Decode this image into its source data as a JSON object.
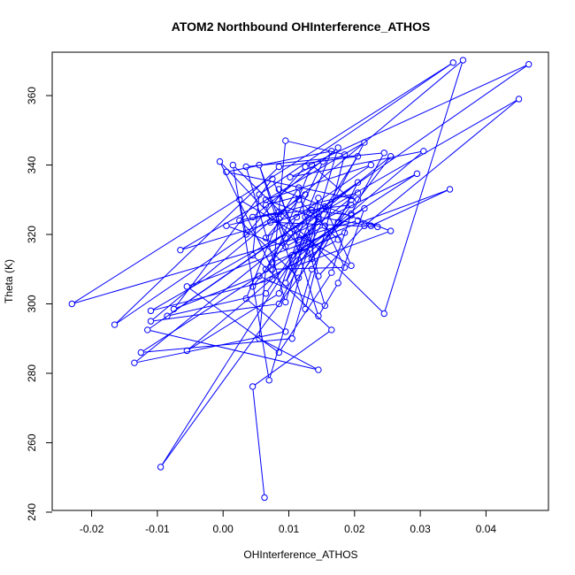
{
  "chart_data": {
    "type": "line",
    "title": "ATOM2 Northbound OHInterference_ATHOS",
    "xlabel": "OHInterference_ATHOS",
    "ylabel": "Theta (K)",
    "xlim": [
      -0.026,
      0.0495
    ],
    "ylim": [
      240.5,
      372.5
    ],
    "x_ticks": [
      -0.02,
      -0.01,
      0.0,
      0.01,
      0.02,
      0.03,
      0.04
    ],
    "x_tick_labels": [
      "-0.02",
      "-0.01",
      "0.00",
      "0.01",
      "0.02",
      "0.03",
      "0.04"
    ],
    "y_ticks": [
      240,
      260,
      280,
      300,
      320,
      340,
      360
    ],
    "y_tick_labels": [
      "240",
      "260",
      "280",
      "300",
      "320",
      "340",
      "360"
    ],
    "grid": false,
    "legend": "none",
    "series": [
      {
        "color": "#0000ff",
        "marker": "open-circle",
        "points": [
          [
            0.0063,
            244.2
          ],
          [
            0.0045,
            276.2
          ],
          [
            0.0165,
            292.5
          ],
          [
            0.0045,
            314.0
          ],
          [
            0.0055,
            331.5
          ],
          [
            0.035,
            369.5
          ],
          [
            -0.023,
            300.0
          ],
          [
            0.0205,
            324.0
          ],
          [
            0.0235,
            322.2
          ],
          [
            0.0072,
            323.5
          ],
          [
            0.0065,
            328.5
          ],
          [
            0.0125,
            331.5
          ],
          [
            -0.0165,
            294.0
          ],
          [
            0.0085,
            339.5
          ],
          [
            0.0205,
            342.5
          ],
          [
            -0.0095,
            253.0
          ],
          [
            0.0195,
            328.5
          ],
          [
            0.0045,
            325.0
          ],
          [
            0.0175,
            345.0
          ],
          [
            0.007,
            278.0
          ],
          [
            0.0015,
            340.0
          ],
          [
            0.0245,
            297.2
          ],
          [
            0.0365,
            370.2
          ],
          [
            -0.011,
            295.0
          ],
          [
            0.0085,
            300.0
          ],
          [
            0.0215,
            346.5
          ],
          [
            -0.0065,
            315.5
          ],
          [
            0.0155,
            328.0
          ],
          [
            0.0195,
            311.0
          ],
          [
            0.0025,
            330.0
          ],
          [
            0.0035,
            320.0
          ],
          [
            0.0125,
            339.5
          ],
          [
            0.0465,
            369.0
          ],
          [
            -0.0115,
            292.5
          ],
          [
            0.0145,
            281.0
          ],
          [
            0.0055,
            290.0
          ],
          [
            0.0065,
            310.0
          ],
          [
            0.0112,
            325.0
          ],
          [
            0.0152,
            341.0
          ],
          [
            0.0102,
            336.5
          ],
          [
            0.0305,
            344.0
          ],
          [
            -0.0055,
            286.5
          ],
          [
            0.0085,
            303.0
          ],
          [
            0.0125,
            325.0
          ],
          [
            0.0165,
            344.0
          ],
          [
            0.0005,
            338.0
          ],
          [
            0.0205,
            330.0
          ],
          [
            0.0255,
            342.5
          ],
          [
            -0.0135,
            283.0
          ],
          [
            0.0095,
            292.0
          ],
          [
            0.0035,
            301.5
          ],
          [
            0.0085,
            324.5
          ],
          [
            0.0115,
            333.5
          ],
          [
            0.0145,
            308.0
          ],
          [
            0.0215,
            322.5
          ],
          [
            0.045,
            359.0
          ],
          [
            -0.011,
            298.0
          ],
          [
            0.0075,
            307.0
          ],
          [
            0.0095,
            347.0
          ],
          [
            0.0185,
            343.0
          ],
          [
            0.0125,
            298.5
          ],
          [
            0.0055,
            340.0
          ],
          [
            0.0095,
            319.0
          ],
          [
            0.0295,
            337.5
          ],
          [
            -0.0125,
            286.0
          ],
          [
            0.0105,
            290.0
          ],
          [
            0.0135,
            310.0
          ],
          [
            0.0175,
            323.5
          ],
          [
            0.0205,
            335.0
          ],
          [
            -0.0085,
            296.5
          ],
          [
            0.0065,
            303.0
          ],
          [
            0.0145,
            325.0
          ],
          [
            0.0225,
            322.5
          ],
          [
            0.0345,
            333.0
          ],
          [
            -0.0055,
            305.0
          ],
          [
            0.0085,
            286.0
          ],
          [
            0.0165,
            309.0
          ],
          [
            0.0195,
            326.0
          ],
          [
            0.0245,
            343.5
          ],
          [
            0.0035,
            339.5
          ],
          [
            0.0095,
            300.5
          ],
          [
            0.0125,
            319.0
          ],
          [
            0.0155,
            299.5
          ],
          [
            0.0055,
            308.0
          ],
          [
            -0.0075,
            298.5
          ],
          [
            0.0075,
            336.0
          ],
          [
            0.0115,
            318.5
          ],
          [
            0.0205,
            332.0
          ],
          [
            0.0005,
            322.5
          ],
          [
            0.0095,
            316.5
          ],
          [
            0.0155,
            322.5
          ],
          [
            0.0185,
            310.5
          ],
          [
            0.0075,
            310.0
          ],
          [
            -0.0005,
            341.0
          ],
          [
            0.0135,
            313.0
          ],
          [
            0.0145,
            330.5
          ],
          [
            0.0095,
            306.0
          ],
          [
            0.0145,
            324.5
          ],
          [
            0.0065,
            330.0
          ],
          [
            0.0225,
            340.0
          ],
          [
            0.0065,
            319.0
          ],
          [
            0.0115,
            330.0
          ],
          [
            0.0175,
            318.5
          ],
          [
            0.0045,
            305.0
          ],
          [
            0.0135,
            327.0
          ],
          [
            0.0195,
            325.5
          ],
          [
            0.0105,
            310.5
          ],
          [
            0.0255,
            321.0
          ],
          [
            0.0085,
            333.0
          ],
          [
            0.0145,
            296.5
          ],
          [
            0.0175,
            306.0
          ],
          [
            0.0215,
            327.5
          ],
          [
            0.0105,
            314.0
          ],
          [
            0.0185,
            320.5
          ],
          [
            0.0075,
            312.0
          ],
          [
            0.0135,
            340.0
          ],
          [
            0.0195,
            330.0
          ],
          [
            0.0115,
            307.5
          ],
          [
            0.0025,
            324.0
          ],
          [
            0.0085,
            326.5
          ]
        ]
      }
    ]
  }
}
